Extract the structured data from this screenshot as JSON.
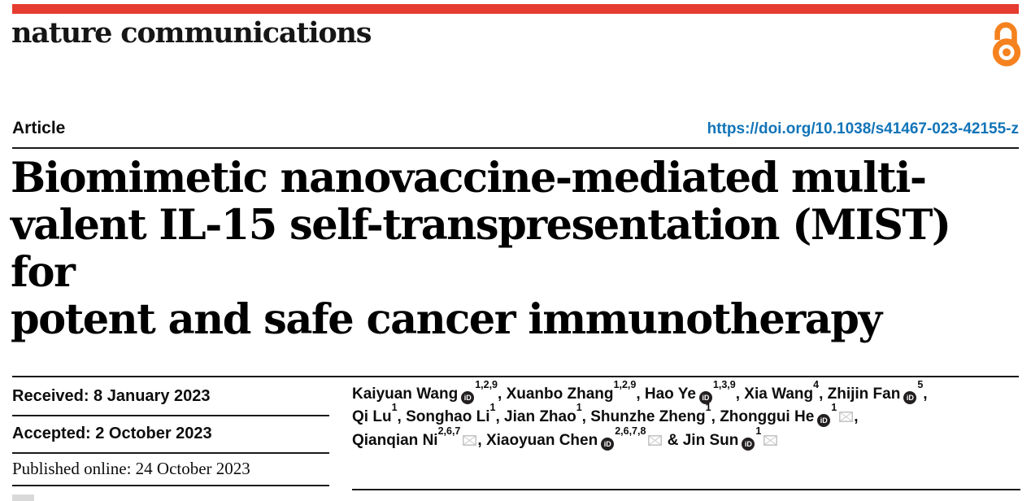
{
  "colors": {
    "brand_red": "#e63c2f",
    "open_access_orange": "#f5821f",
    "link_blue": "#1274b8"
  },
  "masthead": {
    "journal_name": "nature communications"
  },
  "article_bar": {
    "label": "Article",
    "doi_link": "https://doi.org/10.1038/s41467-023-42155-z"
  },
  "title_lines": "Biomimetic nanovaccine-mediated multi-\nvalent IL-15 self-transpresentation (MIST) for\npotent and safe cancer immunotherapy",
  "history": {
    "received": "Received: 8 January 2023",
    "accepted": "Accepted: 2 October 2023",
    "published_online": "Published online: 24 October 2023"
  },
  "authors": {
    "orcid_icon_text": "iD",
    "list": [
      {
        "name": "Kaiyuan Wang",
        "orcid": true,
        "sup": "1,2,9",
        "envelope": false,
        "sep": ", ",
        "break_after": false
      },
      {
        "name": "Xuanbo Zhang",
        "orcid": false,
        "sup": "1,2,9",
        "envelope": false,
        "sep": ", ",
        "break_after": false
      },
      {
        "name": "Hao Ye",
        "orcid": true,
        "sup": "1,3,9",
        "envelope": false,
        "sep": ", ",
        "break_after": false
      },
      {
        "name": "Xia Wang",
        "orcid": false,
        "sup": "4",
        "envelope": false,
        "sep": ", ",
        "break_after": false
      },
      {
        "name": "Zhijin Fan",
        "orcid": true,
        "sup": "5",
        "envelope": false,
        "sep": ",",
        "break_after": true
      },
      {
        "name": "Qi Lu",
        "orcid": false,
        "sup": "1",
        "envelope": false,
        "sep": ", ",
        "break_after": false
      },
      {
        "name": "Songhao Li",
        "orcid": false,
        "sup": "1",
        "envelope": false,
        "sep": ", ",
        "break_after": false
      },
      {
        "name": "Jian Zhao",
        "orcid": false,
        "sup": "1",
        "envelope": false,
        "sep": ", ",
        "break_after": false
      },
      {
        "name": "Shunzhe Zheng",
        "orcid": false,
        "sup": "1",
        "envelope": false,
        "sep": ", ",
        "break_after": false
      },
      {
        "name": "Zhonggui He",
        "orcid": true,
        "sup": "1",
        "envelope": true,
        "sep": ",",
        "break_after": true
      },
      {
        "name": "Qianqian Ni",
        "orcid": false,
        "sup": "2,6,7",
        "envelope": true,
        "sep": ", ",
        "break_after": false
      },
      {
        "name": "Xiaoyuan Chen",
        "orcid": true,
        "sup": "2,6,7,8",
        "envelope": true,
        "sep": " & ",
        "break_after": false
      },
      {
        "name": "Jin Sun",
        "orcid": true,
        "sup": "1",
        "envelope": true,
        "sep": "",
        "break_after": false
      }
    ]
  }
}
